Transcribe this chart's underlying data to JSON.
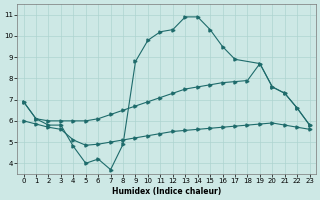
{
  "xlabel": "Humidex (Indice chaleur)",
  "bg_color": "#cde8e5",
  "line_color": "#1e6b6b",
  "grid_color": "#aed4d0",
  "xlim": [
    -0.5,
    23.5
  ],
  "ylim": [
    3.5,
    11.5
  ],
  "yticks": [
    4,
    5,
    6,
    7,
    8,
    9,
    10,
    11
  ],
  "xticks": [
    0,
    1,
    2,
    3,
    4,
    5,
    6,
    7,
    8,
    9,
    10,
    11,
    12,
    13,
    14,
    15,
    16,
    17,
    18,
    19,
    20,
    21,
    22,
    23
  ],
  "peak_x": [
    0,
    1,
    2,
    3,
    4,
    5,
    6,
    7,
    8,
    9,
    10,
    11,
    12,
    13,
    14,
    15,
    16,
    17,
    19,
    20,
    21,
    22,
    23
  ],
  "peak_y": [
    6.9,
    6.1,
    5.8,
    5.8,
    4.8,
    4.0,
    4.2,
    3.7,
    4.9,
    8.8,
    9.8,
    10.2,
    10.3,
    10.9,
    10.9,
    10.3,
    9.5,
    8.9,
    8.7,
    7.6,
    7.3,
    6.6,
    5.8
  ],
  "upper_x": [
    0,
    1,
    2,
    3,
    4,
    5,
    6,
    7,
    8,
    9,
    10,
    11,
    12,
    13,
    14,
    15,
    16,
    17,
    18,
    19,
    20,
    21,
    22,
    23
  ],
  "upper_y": [
    6.9,
    6.1,
    6.0,
    6.0,
    6.0,
    6.0,
    6.1,
    6.3,
    6.5,
    6.7,
    6.9,
    7.1,
    7.3,
    7.5,
    7.6,
    7.7,
    7.8,
    7.85,
    7.9,
    8.7,
    7.6,
    7.3,
    6.6,
    5.8
  ],
  "lower_x": [
    0,
    1,
    2,
    3,
    4,
    5,
    6,
    7,
    8,
    9,
    10,
    11,
    12,
    13,
    14,
    15,
    16,
    17,
    18,
    19,
    20,
    21,
    22,
    23
  ],
  "lower_y": [
    6.0,
    5.85,
    5.7,
    5.6,
    5.1,
    4.85,
    4.9,
    5.0,
    5.1,
    5.2,
    5.3,
    5.4,
    5.5,
    5.55,
    5.6,
    5.65,
    5.7,
    5.75,
    5.8,
    5.85,
    5.9,
    5.8,
    5.7,
    5.6
  ]
}
